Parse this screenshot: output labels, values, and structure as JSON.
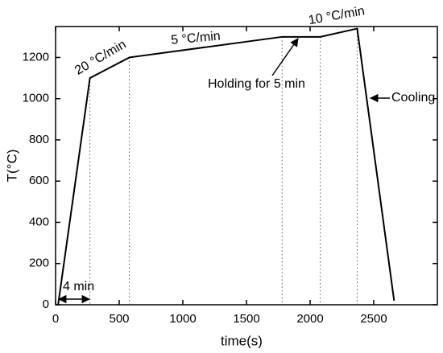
{
  "chart_data": {
    "type": "line",
    "x_label": "time(s)",
    "y_label": "T(°C)",
    "xlim": [
      0,
      3000
    ],
    "xticks": [
      0,
      500,
      1000,
      1500,
      2000,
      2500
    ],
    "ylim": [
      0,
      1350
    ],
    "yticks": [
      0,
      200,
      400,
      600,
      800,
      1000,
      1200
    ],
    "series": [
      {
        "color": "#000000",
        "x": [
          20,
          270,
          580,
          1780,
          2080,
          2370,
          2660
        ],
        "values": [
          0,
          1100,
          1200,
          1300,
          1300,
          1340,
          20
        ]
      }
    ],
    "annotations": [
      "20 °C/min",
      "5 °C/min",
      "10 °C/min",
      "Holding for 5 min",
      "Cooling",
      "4 min"
    ]
  }
}
